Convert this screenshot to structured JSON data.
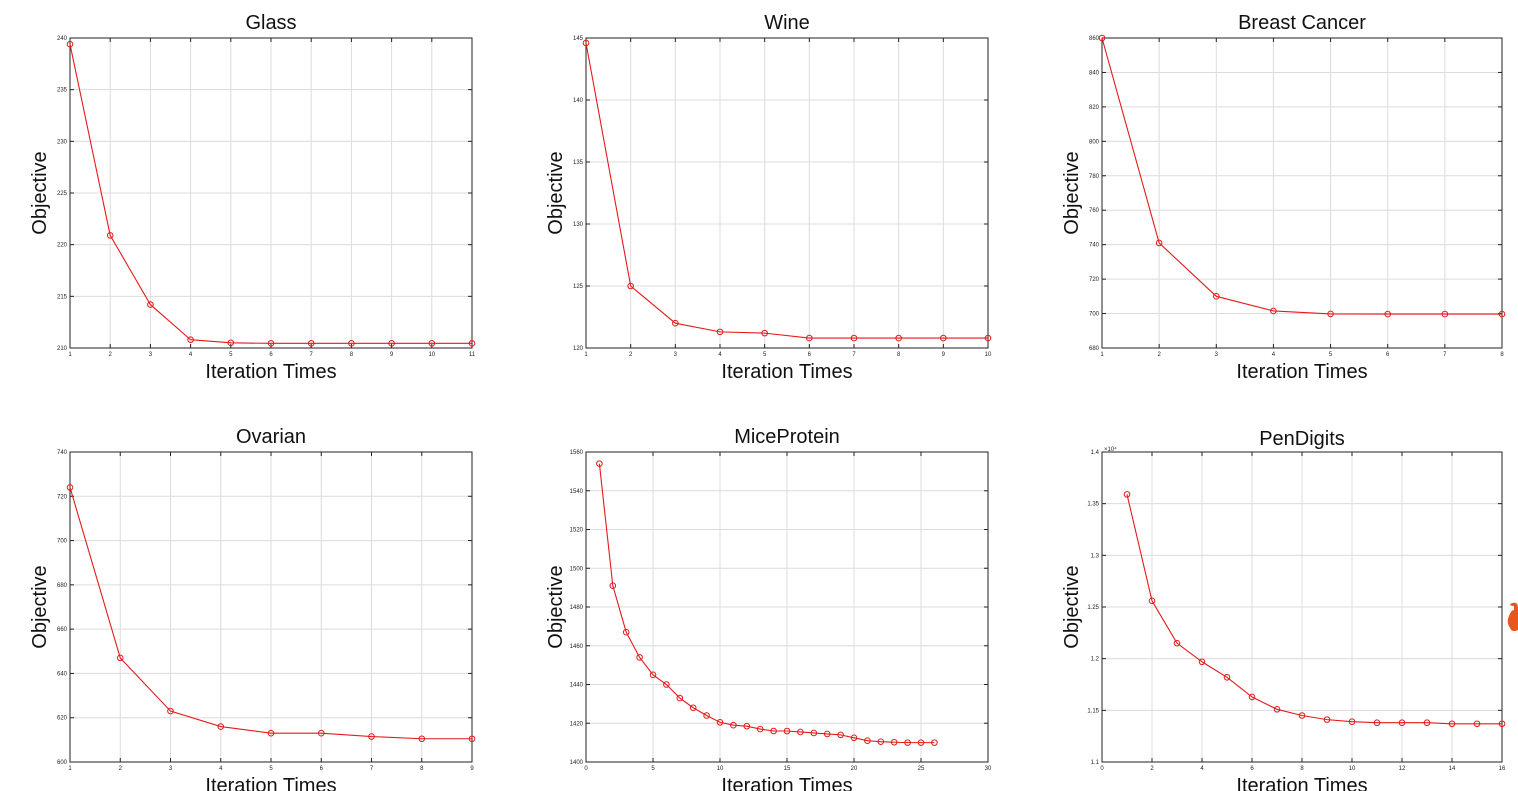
{
  "chart_data": [
    {
      "type": "line",
      "title": "Glass",
      "xlabel": "Iteration Times",
      "ylabel": "Objective",
      "xlim": [
        1,
        11
      ],
      "ylim": [
        210,
        240
      ],
      "xticks": [
        "1",
        "2",
        "3",
        "4",
        "5",
        "6",
        "7",
        "8",
        "9",
        "10",
        "11"
      ],
      "yticks": [
        "210",
        "215",
        "220",
        "225",
        "230",
        "235",
        "240"
      ],
      "grid": true,
      "x": [
        1,
        2,
        3,
        4,
        5,
        6,
        7,
        8,
        9,
        10,
        11
      ],
      "y": [
        239.4,
        220.9,
        214.2,
        210.8,
        210.5,
        210.45,
        210.45,
        210.45,
        210.45,
        210.45,
        210.45
      ]
    },
    {
      "type": "line",
      "title": "Wine",
      "xlabel": "Iteration Times",
      "ylabel": "Objective",
      "xlim": [
        1,
        10
      ],
      "ylim": [
        120,
        145
      ],
      "xticks": [
        "1",
        "2",
        "3",
        "4",
        "5",
        "6",
        "7",
        "8",
        "9",
        "10"
      ],
      "yticks": [
        "120",
        "125",
        "130",
        "135",
        "140",
        "145"
      ],
      "grid": true,
      "x": [
        1,
        2,
        3,
        4,
        5,
        6,
        7,
        8,
        9,
        10
      ],
      "y": [
        144.6,
        125.0,
        122.0,
        121.3,
        121.2,
        120.8,
        120.8,
        120.8,
        120.8,
        120.8
      ]
    },
    {
      "type": "line",
      "title": "Breast Cancer",
      "xlabel": "Iteration Times",
      "ylabel": "Objective",
      "xlim": [
        1,
        8
      ],
      "ylim": [
        680,
        860
      ],
      "xticks": [
        "1",
        "2",
        "3",
        "4",
        "5",
        "6",
        "7",
        "8"
      ],
      "yticks": [
        "680",
        "700",
        "720",
        "740",
        "760",
        "780",
        "800",
        "820",
        "840",
        "860"
      ],
      "grid": true,
      "x": [
        1,
        2,
        3,
        4,
        5,
        6,
        7,
        8
      ],
      "y": [
        860,
        741,
        710,
        701.5,
        699.8,
        699.7,
        699.7,
        699.7
      ]
    },
    {
      "type": "line",
      "title": "Ovarian",
      "xlabel": "Iteration Times",
      "ylabel": "Objective",
      "xlim": [
        1,
        9
      ],
      "ylim": [
        600,
        740
      ],
      "xticks": [
        "1",
        "2",
        "3",
        "4",
        "5",
        "6",
        "7",
        "8",
        "9"
      ],
      "yticks": [
        "600",
        "620",
        "640",
        "660",
        "680",
        "700",
        "720",
        "740"
      ],
      "grid": true,
      "x": [
        1,
        2,
        3,
        4,
        5,
        6,
        7,
        8,
        9
      ],
      "y": [
        724,
        647,
        623,
        616,
        613,
        613,
        611.5,
        610.5,
        610.5
      ]
    },
    {
      "type": "line",
      "title": "MiceProtein",
      "xlabel": "Iteration Times",
      "ylabel": "Objective",
      "xlim": [
        0,
        30
      ],
      "ylim": [
        1400,
        1560
      ],
      "xticks": [
        "0",
        "5",
        "10",
        "15",
        "20",
        "25",
        "30"
      ],
      "yticks": [
        "1400",
        "1420",
        "1440",
        "1460",
        "1480",
        "1500",
        "1520",
        "1540",
        "1560"
      ],
      "grid": true,
      "x": [
        1,
        2,
        3,
        4,
        5,
        6,
        7,
        8,
        9,
        10,
        11,
        12,
        13,
        14,
        15,
        16,
        17,
        18,
        19,
        20,
        21,
        22,
        23,
        24,
        25,
        26
      ],
      "y": [
        1554,
        1491,
        1467,
        1454,
        1445,
        1440,
        1433,
        1428,
        1424,
        1420.5,
        1419,
        1418.5,
        1417,
        1416,
        1416,
        1415.5,
        1415,
        1414.5,
        1414,
        1412.5,
        1411,
        1410.5,
        1410.2,
        1410,
        1410,
        1410
      ]
    },
    {
      "type": "line",
      "title": "PenDigits",
      "xlabel": "Iteration Times",
      "ylabel": "Objective",
      "xlim": [
        0,
        16
      ],
      "ylim": [
        1.1,
        1.4
      ],
      "y_exponent": "×10⁴",
      "xticks": [
        "0",
        "2",
        "4",
        "6",
        "8",
        "10",
        "12",
        "14",
        "16"
      ],
      "yticks": [
        "1.1",
        "1.15",
        "1.2",
        "1.25",
        "1.3",
        "1.35",
        "1.4"
      ],
      "grid": true,
      "x": [
        1,
        2,
        3,
        4,
        5,
        6,
        7,
        8,
        9,
        10,
        11,
        12,
        13,
        14,
        15,
        16
      ],
      "y": [
        1.359,
        1.256,
        1.215,
        1.197,
        1.182,
        1.163,
        1.151,
        1.145,
        1.141,
        1.139,
        1.138,
        1.138,
        1.138,
        1.137,
        1.137,
        1.137
      ]
    }
  ],
  "colors": {
    "series": "#e41a1a",
    "grid": "#dcdcdc",
    "frame": "#222222",
    "watermark": "#e8561c"
  },
  "icons": {
    "watermark": "watermark-logo-icon"
  }
}
